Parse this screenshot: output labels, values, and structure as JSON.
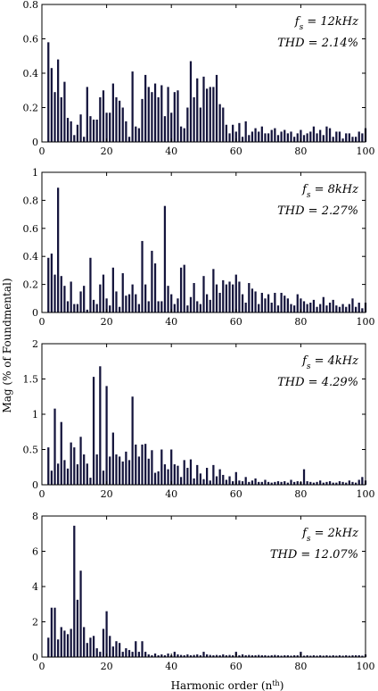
{
  "figure": {
    "ylabel": "Mag (% of Foundmental)",
    "xlabel_main": "Harmonic order (n",
    "xlabel_sup": "th",
    "xlabel_close": ")"
  },
  "chart_data": [
    {
      "type": "bar",
      "annotation": {
        "fs_var": "f",
        "fs_sub": "s",
        "fs_value": " = 12kHz",
        "thd": "THD = 2.14%"
      },
      "xlim": [
        0,
        100
      ],
      "ylim": [
        0,
        0.8
      ],
      "xticks": [
        "0",
        "20",
        "40",
        "60",
        "80",
        "100"
      ],
      "yticks": [
        "0",
        "0.2",
        "0.4",
        "0.6",
        "0.8"
      ],
      "x": [
        2,
        3,
        4,
        5,
        6,
        7,
        8,
        9,
        10,
        11,
        12,
        13,
        14,
        15,
        16,
        17,
        18,
        19,
        20,
        21,
        22,
        23,
        24,
        25,
        26,
        27,
        28,
        29,
        30,
        31,
        32,
        33,
        34,
        35,
        36,
        37,
        38,
        39,
        40,
        41,
        42,
        43,
        44,
        45,
        46,
        47,
        48,
        49,
        50,
        51,
        52,
        53,
        54,
        55,
        56,
        57,
        58,
        59,
        60,
        61,
        62,
        63,
        64,
        65,
        66,
        67,
        68,
        69,
        70,
        71,
        72,
        73,
        74,
        75,
        76,
        77,
        78,
        79,
        80,
        81,
        82,
        83,
        84,
        85,
        86,
        87,
        88,
        89,
        90,
        91,
        92,
        93,
        94,
        95,
        96,
        97,
        98,
        99,
        100
      ],
      "values": [
        0.58,
        0.43,
        0.29,
        0.48,
        0.26,
        0.35,
        0.14,
        0.12,
        0.04,
        0.1,
        0.16,
        0.03,
        0.32,
        0.15,
        0.13,
        0.13,
        0.26,
        0.3,
        0.17,
        0.17,
        0.34,
        0.26,
        0.24,
        0.2,
        0.12,
        0.03,
        0.41,
        0.09,
        0.08,
        0.25,
        0.39,
        0.32,
        0.29,
        0.34,
        0.26,
        0.33,
        0.15,
        0.32,
        0.17,
        0.29,
        0.3,
        0.09,
        0.08,
        0.2,
        0.47,
        0.26,
        0.37,
        0.2,
        0.38,
        0.31,
        0.32,
        0.32,
        0.39,
        0.22,
        0.2,
        0.1,
        0.05,
        0.1,
        0.06,
        0.11,
        0.03,
        0.12,
        0.04,
        0.06,
        0.08,
        0.06,
        0.09,
        0.05,
        0.05,
        0.07,
        0.08,
        0.04,
        0.06,
        0.07,
        0.05,
        0.06,
        0.03,
        0.05,
        0.07,
        0.04,
        0.05,
        0.06,
        0.09,
        0.05,
        0.07,
        0.04,
        0.09,
        0.08,
        0.03,
        0.06,
        0.06,
        0.02,
        0.05,
        0.05,
        0.03,
        0.03,
        0.06,
        0.05,
        0.08
      ]
    },
    {
      "type": "bar",
      "annotation": {
        "fs_var": "f",
        "fs_sub": "s",
        "fs_value": " = 8kHz",
        "thd": "THD = 2.27%"
      },
      "xlim": [
        0,
        100
      ],
      "ylim": [
        0,
        1
      ],
      "xticks": [
        "0",
        "20",
        "40",
        "60",
        "80",
        "100"
      ],
      "yticks": [
        "0",
        "0.2",
        "0.4",
        "0.6",
        "0.8",
        "1"
      ],
      "x": [
        2,
        3,
        4,
        5,
        6,
        7,
        8,
        9,
        10,
        11,
        12,
        13,
        14,
        15,
        16,
        17,
        18,
        19,
        20,
        21,
        22,
        23,
        24,
        25,
        26,
        27,
        28,
        29,
        30,
        31,
        32,
        33,
        34,
        35,
        36,
        37,
        38,
        39,
        40,
        41,
        42,
        43,
        44,
        45,
        46,
        47,
        48,
        49,
        50,
        51,
        52,
        53,
        54,
        55,
        56,
        57,
        58,
        59,
        60,
        61,
        62,
        63,
        64,
        65,
        66,
        67,
        68,
        69,
        70,
        71,
        72,
        73,
        74,
        75,
        76,
        77,
        78,
        79,
        80,
        81,
        82,
        83,
        84,
        85,
        86,
        87,
        88,
        89,
        90,
        91,
        92,
        93,
        94,
        95,
        96,
        97,
        98,
        99,
        100
      ],
      "values": [
        0.39,
        0.42,
        0.27,
        0.89,
        0.26,
        0.19,
        0.08,
        0.22,
        0.06,
        0.06,
        0.15,
        0.19,
        0.02,
        0.39,
        0.09,
        0.06,
        0.2,
        0.27,
        0.1,
        0.05,
        0.32,
        0.15,
        0.04,
        0.28,
        0.12,
        0.13,
        0.2,
        0.13,
        0.06,
        0.51,
        0.2,
        0.08,
        0.44,
        0.35,
        0.08,
        0.08,
        0.76,
        0.19,
        0.13,
        0.06,
        0.1,
        0.32,
        0.34,
        0.05,
        0.11,
        0.21,
        0.08,
        0.06,
        0.26,
        0.13,
        0.09,
        0.31,
        0.2,
        0.14,
        0.23,
        0.2,
        0.22,
        0.2,
        0.27,
        0.22,
        0.13,
        0.07,
        0.21,
        0.17,
        0.15,
        0.06,
        0.14,
        0.1,
        0.13,
        0.07,
        0.14,
        0.05,
        0.14,
        0.12,
        0.1,
        0.06,
        0.05,
        0.13,
        0.1,
        0.08,
        0.06,
        0.07,
        0.09,
        0.04,
        0.06,
        0.11,
        0.05,
        0.07,
        0.09,
        0.05,
        0.04,
        0.06,
        0.04,
        0.06,
        0.1,
        0.04,
        0.07,
        0.03,
        0.07
      ]
    },
    {
      "type": "bar",
      "annotation": {
        "fs_var": "f",
        "fs_sub": "s",
        "fs_value": " = 4kHz",
        "thd": "THD = 4.29%"
      },
      "xlim": [
        0,
        100
      ],
      "ylim": [
        0,
        2
      ],
      "xticks": [
        "0",
        "20",
        "40",
        "60",
        "80",
        "100"
      ],
      "yticks": [
        "0",
        "0.5",
        "1",
        "1.5",
        "2"
      ],
      "x": [
        2,
        3,
        4,
        5,
        6,
        7,
        8,
        9,
        10,
        11,
        12,
        13,
        14,
        15,
        16,
        17,
        18,
        19,
        20,
        21,
        22,
        23,
        24,
        25,
        26,
        27,
        28,
        29,
        30,
        31,
        32,
        33,
        34,
        35,
        36,
        37,
        38,
        39,
        40,
        41,
        42,
        43,
        44,
        45,
        46,
        47,
        48,
        49,
        50,
        51,
        52,
        53,
        54,
        55,
        56,
        57,
        58,
        59,
        60,
        61,
        62,
        63,
        64,
        65,
        66,
        67,
        68,
        69,
        70,
        71,
        72,
        73,
        74,
        75,
        76,
        77,
        78,
        79,
        80,
        81,
        82,
        83,
        84,
        85,
        86,
        87,
        88,
        89,
        90,
        91,
        92,
        93,
        94,
        95,
        96,
        97,
        98,
        99,
        100
      ],
      "values": [
        0.53,
        0.2,
        1.08,
        0.3,
        0.89,
        0.35,
        0.23,
        0.6,
        0.53,
        0.29,
        0.68,
        0.43,
        0.3,
        0.1,
        1.53,
        0.43,
        1.68,
        0.2,
        1.4,
        0.4,
        0.74,
        0.43,
        0.4,
        0.33,
        0.47,
        0.35,
        1.25,
        0.57,
        0.4,
        0.57,
        0.58,
        0.37,
        0.49,
        0.17,
        0.19,
        0.5,
        0.29,
        0.22,
        0.5,
        0.29,
        0.27,
        0.11,
        0.35,
        0.24,
        0.36,
        0.09,
        0.28,
        0.16,
        0.08,
        0.24,
        0.06,
        0.28,
        0.12,
        0.22,
        0.14,
        0.07,
        0.12,
        0.05,
        0.18,
        0.06,
        0.05,
        0.11,
        0.04,
        0.06,
        0.09,
        0.04,
        0.04,
        0.07,
        0.04,
        0.03,
        0.04,
        0.05,
        0.04,
        0.05,
        0.03,
        0.07,
        0.04,
        0.05,
        0.04,
        0.22,
        0.05,
        0.04,
        0.03,
        0.04,
        0.06,
        0.03,
        0.04,
        0.05,
        0.03,
        0.03,
        0.05,
        0.04,
        0.03,
        0.06,
        0.04,
        0.03,
        0.07,
        0.11,
        0.06
      ]
    },
    {
      "type": "bar",
      "annotation": {
        "fs_var": "f",
        "fs_sub": "s",
        "fs_value": " = 2kHz",
        "thd": "THD = 12.07%"
      },
      "xlim": [
        0,
        100
      ],
      "ylim": [
        0,
        8
      ],
      "xticks": [
        "0",
        "20",
        "40",
        "60",
        "80",
        "100"
      ],
      "yticks": [
        "0",
        "2",
        "4",
        "6",
        "8"
      ],
      "x": [
        2,
        3,
        4,
        5,
        6,
        7,
        8,
        9,
        10,
        11,
        12,
        13,
        14,
        15,
        16,
        17,
        18,
        19,
        20,
        21,
        22,
        23,
        24,
        25,
        26,
        27,
        28,
        29,
        30,
        31,
        32,
        33,
        34,
        35,
        36,
        37,
        38,
        39,
        40,
        41,
        42,
        43,
        44,
        45,
        46,
        47,
        48,
        49,
        50,
        51,
        52,
        53,
        54,
        55,
        56,
        57,
        58,
        59,
        60,
        61,
        62,
        63,
        64,
        65,
        66,
        67,
        68,
        69,
        70,
        71,
        72,
        73,
        74,
        75,
        76,
        77,
        78,
        79,
        80,
        81,
        82,
        83,
        84,
        85,
        86,
        87,
        88,
        89,
        90,
        91,
        92,
        93,
        94,
        95,
        96,
        97,
        98,
        99,
        100
      ],
      "values": [
        1.1,
        2.8,
        2.8,
        1.0,
        1.7,
        1.5,
        1.3,
        1.6,
        7.45,
        3.25,
        4.9,
        1.7,
        0.8,
        1.1,
        1.2,
        0.5,
        0.3,
        1.6,
        2.6,
        1.2,
        0.6,
        0.9,
        0.8,
        0.3,
        0.5,
        0.4,
        0.3,
        0.9,
        0.3,
        0.9,
        0.3,
        0.15,
        0.1,
        0.2,
        0.1,
        0.15,
        0.1,
        0.2,
        0.1,
        0.3,
        0.15,
        0.12,
        0.1,
        0.15,
        0.1,
        0.12,
        0.15,
        0.1,
        0.3,
        0.15,
        0.12,
        0.1,
        0.12,
        0.1,
        0.15,
        0.1,
        0.12,
        0.1,
        0.3,
        0.1,
        0.15,
        0.1,
        0.12,
        0.1,
        0.1,
        0.12,
        0.1,
        0.1,
        0.08,
        0.1,
        0.12,
        0.1,
        0.08,
        0.1,
        0.1,
        0.08,
        0.1,
        0.1,
        0.3,
        0.08,
        0.1,
        0.08,
        0.1,
        0.08,
        0.1,
        0.08,
        0.1,
        0.08,
        0.1,
        0.08,
        0.1,
        0.08,
        0.1,
        0.08,
        0.1,
        0.1,
        0.1,
        0.08,
        0.15
      ]
    }
  ]
}
